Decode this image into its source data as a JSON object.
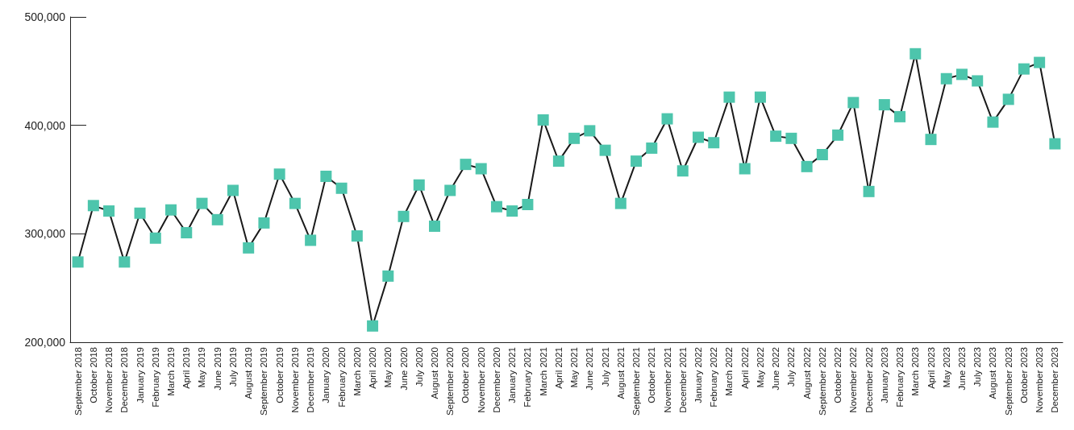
{
  "chart_data": {
    "type": "line",
    "categories": [
      "September 2018",
      "October 2018",
      "November 2018",
      "December 2018",
      "January 2019",
      "February 2019",
      "March 2019",
      "April 2019",
      "May 2019",
      "June 2019",
      "July 2019",
      "August 2019",
      "September 2019",
      "October 2019",
      "November 2019",
      "December 2019",
      "January 2020",
      "February 2020",
      "March 2020",
      "April 2020",
      "May 2020",
      "June 2020",
      "July 2020",
      "August 2020",
      "September 2020",
      "October 2020",
      "November 2020",
      "December 2020",
      "January 2021",
      "February 2021",
      "March 2021",
      "April 2021",
      "May 2021",
      "June 2021",
      "July 2021",
      "August 2021",
      "September 2021",
      "October 2021",
      "November 2021",
      "December 2021",
      "January 2022",
      "February 2022",
      "March 2022",
      "April 2022",
      "May 2022",
      "June 2022",
      "July 2022",
      "August 2022",
      "September 2022",
      "October 2022",
      "November 2022",
      "December 2022",
      "January 2023",
      "February 2023",
      "March 2023",
      "April 2023",
      "May 2023",
      "June 2023",
      "July 2023",
      "August 2023",
      "September 2023",
      "October 2023",
      "November 2023",
      "December 2023"
    ],
    "series": [
      {
        "color": "#4dc5ac",
        "values": [
          274000,
          326000,
          321000,
          274000,
          319000,
          296000,
          322000,
          301000,
          328000,
          313000,
          340000,
          287000,
          310000,
          355000,
          328000,
          294000,
          353000,
          342000,
          298000,
          215000,
          261000,
          316000,
          345000,
          307000,
          340000,
          364000,
          360000,
          325000,
          321000,
          327000,
          405000,
          367000,
          388000,
          395000,
          377000,
          328000,
          367000,
          379000,
          406000,
          358000,
          389000,
          384000,
          426000,
          360000,
          426000,
          390000,
          388000,
          362000,
          373000,
          391000,
          421000,
          339000,
          419000,
          408000,
          466000,
          387000,
          443000,
          447000,
          441000,
          403000,
          424000,
          452000,
          458000,
          383000
        ]
      }
    ],
    "marker": "square",
    "line_style": "solid",
    "grid": false,
    "ylim": [
      200000,
      500000
    ],
    "yticks": [
      {
        "value": 200000,
        "label": "200,000"
      },
      {
        "value": 300000,
        "label": "300,000"
      },
      {
        "value": 400000,
        "label": "400,000"
      },
      {
        "value": 500000,
        "label": "500,000"
      }
    ]
  }
}
